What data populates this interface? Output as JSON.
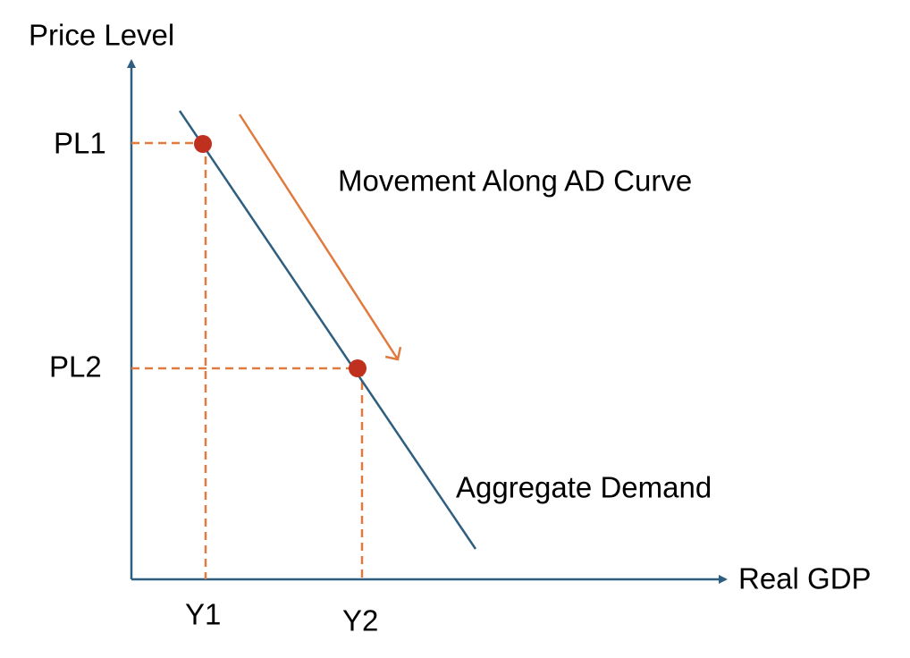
{
  "axes": {
    "y_label": "Price Level",
    "x_label": "Real GDP"
  },
  "price_levels": [
    "PL1",
    "PL2"
  ],
  "outputs": [
    "Y1",
    "Y2"
  ],
  "curve": {
    "label": "Aggregate Demand"
  },
  "annotation": "Movement Along AD Curve"
}
